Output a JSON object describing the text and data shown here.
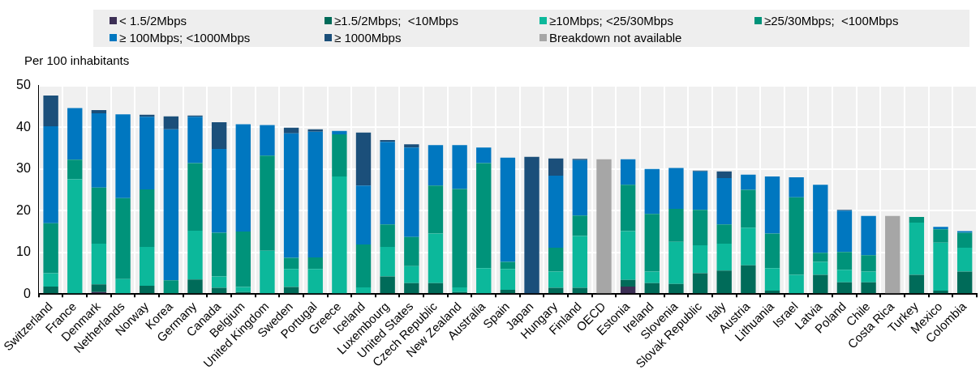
{
  "chart_data": {
    "type": "bar",
    "stacked": true,
    "ylabel": "Per 100 inhabitants",
    "ylim": [
      0,
      50
    ],
    "yticks": [
      0,
      10,
      20,
      30,
      40,
      50
    ],
    "grid": true,
    "legend": "top",
    "categories": [
      "Switzerland",
      "France",
      "Denmark",
      "Netherlands",
      "Norway",
      "Korea",
      "Germany",
      "Canada",
      "Belgium",
      "United Kingdom",
      "Sweden",
      "Portugal",
      "Greece",
      "Iceland",
      "Luxembourg",
      "United States",
      "Czech Republic",
      "New Zealand",
      "Australia",
      "Spain",
      "Japan",
      "Hungary",
      "Finland",
      "OECD",
      "Estonia",
      "Ireland",
      "Slovenia",
      "Slovak Republic",
      "Italy",
      "Austria",
      "Lithuania",
      "Israel",
      "Latvia",
      "Poland",
      "Chile",
      "Costa Rica",
      "Turkey",
      "Mexico",
      "Colombia"
    ],
    "series": [
      {
        "name": "< 1.5/2Mbps",
        "color": "#3c2f55",
        "values": [
          null,
          null,
          0.5,
          null,
          null,
          null,
          null,
          null,
          null,
          null,
          null,
          null,
          null,
          null,
          null,
          null,
          null,
          null,
          null,
          null,
          null,
          null,
          null,
          null,
          1.8,
          null,
          null,
          0.2,
          null,
          null,
          null,
          null,
          null,
          null,
          null,
          null,
          null,
          null,
          null
        ]
      },
      {
        "name": "≥1.5/2Mbps;  <10Mbps",
        "color": "#006b59",
        "values": [
          1.8,
          null,
          1.8,
          null,
          2,
          null,
          3.5,
          1.5,
          0.5,
          0.2,
          1.7,
          0.2,
          null,
          null,
          4.2,
          2.6,
          2.6,
          0.5,
          null,
          1,
          null,
          1.5,
          1.5,
          null,
          1.6,
          2.6,
          2.4,
          4.8,
          5.6,
          6.9,
          0.8,
          0.2,
          4.6,
          2.8,
          2.8,
          null,
          4.6,
          0.8,
          5.4
        ]
      },
      {
        "name": "≥10Mbps; <25/30Mbps",
        "color": "#0cb89b",
        "values": [
          3.2,
          27.5,
          9.8,
          3.6,
          9.3,
          null,
          11.7,
          2.7,
          1.2,
          10.2,
          4.3,
          5.8,
          28.2,
          1.6,
          7.1,
          4.1,
          11.9,
          1.1,
          6.2,
          5,
          null,
          3.9,
          12.4,
          null,
          11.7,
          2.8,
          10.1,
          6.7,
          6.5,
          9,
          5.4,
          4.4,
          3.1,
          3,
          2.6,
          null,
          12.5,
          11.5,
          5.7
        ]
      },
      {
        "name": "≥25/30Mbps;  <100Mbps",
        "color": "#00937a",
        "values": [
          12,
          4.7,
          13.4,
          19.4,
          13.8,
          3.3,
          16.2,
          10.5,
          13.3,
          22.8,
          2.7,
          2.8,
          10.1,
          10.3,
          5.4,
          7,
          11.5,
          23.6,
          25.2,
          1.7,
          null,
          5.7,
          4.9,
          null,
          11.1,
          13.8,
          7.9,
          8.5,
          4.6,
          9.1,
          8.3,
          18.6,
          2.2,
          4.3,
          3.9,
          null,
          1.4,
          3.2,
          3.6
        ]
      },
      {
        "name": "≥ 100Mbps; <1000Mbps",
        "color": "#0077c0",
        "values": [
          23.2,
          12.4,
          17.8,
          20.1,
          17.4,
          36.2,
          11.1,
          20.1,
          25.7,
          7.3,
          29.8,
          30.1,
          0.8,
          14.1,
          19.8,
          21.4,
          9.7,
          10.5,
          3.7,
          25,
          null,
          17.3,
          13.3,
          null,
          6.1,
          10.8,
          9.8,
          9.2,
          11.1,
          3.6,
          13.7,
          4.8,
          16.3,
          9.9,
          9.4,
          null,
          null,
          0.6,
          0.4
        ]
      },
      {
        "name": "≥ 1000Mbps",
        "color": "#1b4f7a",
        "values": [
          7.4,
          null,
          0.8,
          null,
          0.5,
          3.1,
          0.3,
          6.4,
          null,
          null,
          1.4,
          0.6,
          null,
          12.7,
          0.4,
          0.8,
          null,
          null,
          null,
          null,
          32.9,
          4.1,
          0.3,
          null,
          null,
          null,
          null,
          0.2,
          1.6,
          null,
          null,
          null,
          null,
          0.2,
          null,
          null,
          null,
          null,
          null
        ]
      },
      {
        "name": "Breakdown not available",
        "color": "#a6a6a6",
        "values": [
          null,
          null,
          null,
          null,
          null,
          null,
          null,
          null,
          null,
          null,
          null,
          null,
          null,
          null,
          null,
          null,
          null,
          null,
          null,
          null,
          null,
          null,
          null,
          32.3,
          null,
          null,
          null,
          null,
          null,
          null,
          null,
          null,
          null,
          null,
          null,
          18.7,
          null,
          null,
          null
        ]
      }
    ]
  }
}
